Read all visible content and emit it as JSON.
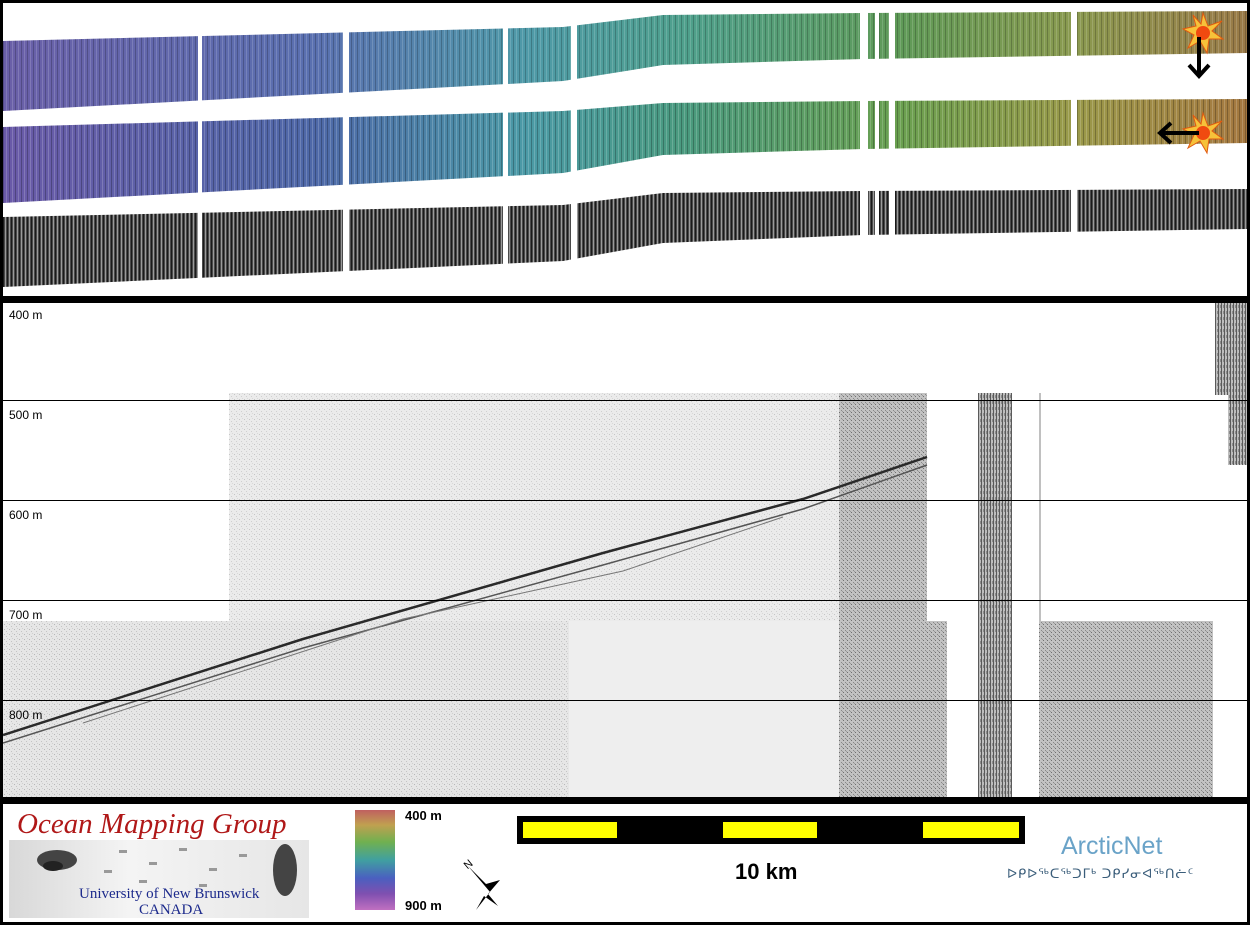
{
  "colors": {
    "frame": "#000000",
    "gridline": "#000000",
    "sun_arrow": "#000000",
    "scalebar_on": "#ffff00",
    "scalebar_off": "#000000",
    "omg_title": "#b01818",
    "omg_sub": "#1c2a8c",
    "arcticnet": "#6aa3c8"
  },
  "top_panel": {
    "rows": [
      "sun-illuminated-from-north",
      "sun-illuminated-from-east",
      "backscatter-greyscale"
    ],
    "sun_icons": [
      "sun-icon",
      "sun-icon"
    ],
    "arrow_icons": [
      "arrow-down-icon",
      "arrow-left-icon"
    ]
  },
  "sub_bottom_profile": {
    "depth_labels": [
      "400 m",
      "500 m",
      "600 m",
      "700 m",
      "800 m"
    ],
    "depth_range_m": [
      400,
      900
    ]
  },
  "legend": {
    "logo_title": "Ocean Mapping Group",
    "logo_sub1": "University of New Brunswick",
    "logo_sub2": "CANADA",
    "colorbar_top": "400 m",
    "colorbar_bottom": "900 m",
    "north_label": "N",
    "scale_label": "10 km",
    "arcticnet_title": "ArcticNet",
    "arcticnet_sub": "ᐅᑭᐅᖅᑕᖅᑐᒥᒃ ᑐᑭᓯᓂᐊᖅᑎᓖᑦ"
  }
}
